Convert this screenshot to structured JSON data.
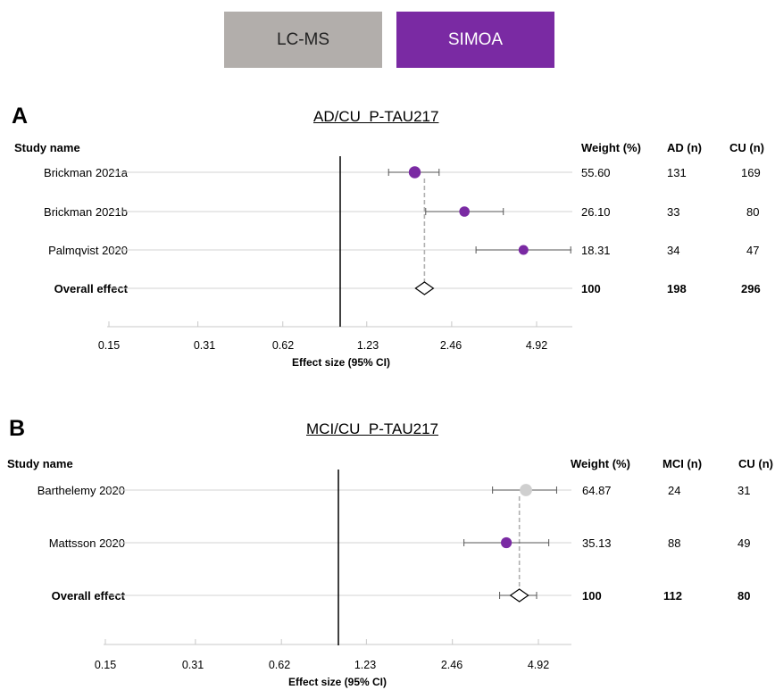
{
  "legend": [
    {
      "label": "LC-MS",
      "color": "#b2aeab",
      "text_color": "#222222"
    },
    {
      "label": "SIMOA",
      "color": "#7a2aa3",
      "text_color": "#ffffff"
    }
  ],
  "colors": {
    "simoa": "#7a2aa3",
    "lcms": "#cfcfcf",
    "refline": "#000000",
    "guide": "#b0b0b0"
  },
  "chart_data": [
    {
      "type": "forest",
      "panel_letter": "A",
      "title": "AD/CU  P-TAU217",
      "xlabel": "Effect size (95% CI)",
      "x_scale": "log",
      "xlim": [
        0.15,
        6.5
      ],
      "x_ticks": [
        "0.15",
        "0.31",
        "0.62",
        "1.23",
        "2.46",
        "4.92"
      ],
      "reference_line": 1.0,
      "columns": [
        "Study name",
        "Weight (%)",
        "AD (n)",
        "CU (n)"
      ],
      "studies": [
        {
          "name": "Brickman 2021a",
          "method": "SIMOA",
          "effect": 1.82,
          "ci": [
            1.47,
            2.22
          ],
          "weight": "55.60",
          "n1": "131",
          "n2": "169"
        },
        {
          "name": "Brickman 2021b",
          "method": "SIMOA",
          "effect": 2.73,
          "ci": [
            1.99,
            3.75
          ],
          "weight": "26.10",
          "n1": "33",
          "n2": "80"
        },
        {
          "name": "Palmqvist 2020",
          "method": "SIMOA",
          "effect": 4.42,
          "ci": [
            3.0,
            6.5
          ],
          "weight": "18.31",
          "n1": "34",
          "n2": "47"
        }
      ],
      "overall": {
        "name": "Overall effect",
        "effect": 1.97,
        "ci": [
          1.82,
          2.12
        ],
        "weight": "100",
        "n1": "198",
        "n2": "296"
      }
    },
    {
      "type": "forest",
      "panel_letter": "B",
      "title": "MCI/CU  P-TAU217",
      "xlabel": "Effect size (95% CI)",
      "x_scale": "log",
      "xlim": [
        0.15,
        6.5
      ],
      "x_ticks": [
        "0.15",
        "0.31",
        "0.62",
        "1.23",
        "2.46",
        "4.92"
      ],
      "reference_line": 1.0,
      "columns": [
        "Study name",
        "Weight (%)",
        "MCI (n)",
        "CU (n)"
      ],
      "studies": [
        {
          "name": "Barthelemy 2020",
          "method": "LC-MS",
          "effect": 4.45,
          "ci": [
            3.4,
            5.7
          ],
          "weight": "64.87",
          "n1": "24",
          "n2": "31"
        },
        {
          "name": "Mattsson 2020",
          "method": "SIMOA",
          "effect": 3.8,
          "ci": [
            2.7,
            5.35
          ],
          "weight": "35.13",
          "n1": "88",
          "n2": "49"
        }
      ],
      "overall": {
        "name": "Overall effect",
        "effect": 4.22,
        "ci": [
          3.6,
          4.85
        ],
        "weight": "100",
        "n1": "112",
        "n2": "80"
      }
    }
  ]
}
